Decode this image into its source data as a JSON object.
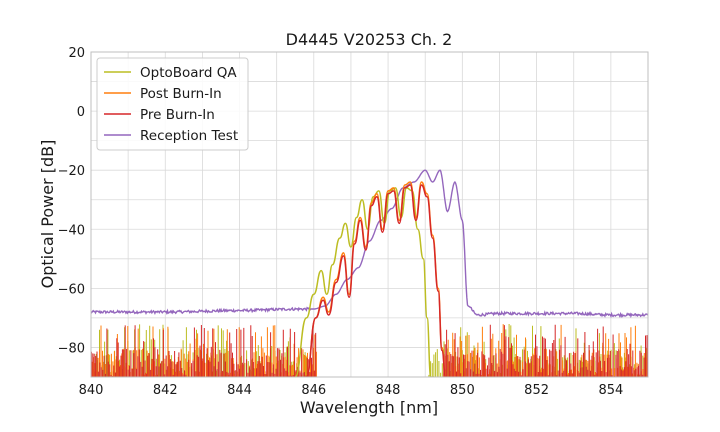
{
  "chart_data": {
    "type": "line",
    "title": "D4445 V20253 Ch. 2",
    "xlabel": "Wavelength [nm]",
    "ylabel": "Optical Power [dB]",
    "xlim": [
      840,
      855
    ],
    "ylim": [
      -90,
      20
    ],
    "xticks": [
      840,
      842,
      844,
      846,
      848,
      850,
      852,
      854
    ],
    "yticks": [
      -80,
      -60,
      -40,
      -20,
      0,
      20
    ],
    "ytick_labels": [
      "−80",
      "−60",
      "−40",
      "−20",
      "0",
      "20"
    ],
    "grid": true,
    "legend_position": "top-left",
    "colors": {
      "OptoBoard QA": "#bcbd22",
      "Post Burn-In": "#ff7f0e",
      "Pre Burn-In": "#d62728",
      "Reception Test": "#9467bd"
    },
    "series": [
      {
        "name": "OptoBoard QA",
        "noise_floor_range": [
          -90,
          -72
        ],
        "x": [
          845.5,
          845.8,
          846.0,
          846.2,
          846.35,
          846.5,
          846.7,
          846.85,
          847.0,
          847.15,
          847.3,
          847.45,
          847.6,
          847.75,
          847.9,
          848.05,
          848.2,
          848.35,
          848.5,
          848.65,
          848.8,
          848.95,
          849.05,
          849.15,
          849.25
        ],
        "values": [
          -90,
          -70,
          -62,
          -54,
          -62,
          -52,
          -43,
          -38,
          -46,
          -36,
          -30,
          -40,
          -29,
          -27,
          -38,
          -27,
          -26,
          -36,
          -26,
          -27,
          -40,
          -50,
          -70,
          -90,
          -90
        ]
      },
      {
        "name": "Post Burn-In",
        "noise_floor_range": [
          -90,
          -72
        ],
        "x": [
          845.8,
          846.05,
          846.25,
          846.4,
          846.6,
          846.8,
          846.95,
          847.1,
          847.25,
          847.4,
          847.55,
          847.7,
          847.85,
          848.0,
          848.15,
          848.3,
          848.45,
          848.6,
          848.75,
          848.9,
          849.05,
          849.2,
          849.35,
          849.45,
          849.55
        ],
        "values": [
          -90,
          -70,
          -63,
          -68,
          -57,
          -48,
          -62,
          -44,
          -36,
          -46,
          -31,
          -28,
          -40,
          -27,
          -26,
          -37,
          -25,
          -24,
          -36,
          -24,
          -28,
          -42,
          -60,
          -80,
          -90
        ]
      },
      {
        "name": "Pre Burn-In",
        "noise_floor_range": [
          -90,
          -72
        ],
        "x": [
          845.8,
          846.05,
          846.25,
          846.4,
          846.6,
          846.8,
          846.95,
          847.1,
          847.25,
          847.4,
          847.55,
          847.7,
          847.85,
          848.0,
          848.15,
          848.3,
          848.45,
          848.6,
          848.75,
          848.9,
          849.05,
          849.2,
          849.35,
          849.45,
          849.55
        ],
        "values": [
          -90,
          -70,
          -64,
          -69,
          -58,
          -49,
          -63,
          -45,
          -37,
          -47,
          -32,
          -29,
          -41,
          -28,
          -27,
          -38,
          -26,
          -25,
          -37,
          -25,
          -29,
          -43,
          -61,
          -81,
          -90
        ]
      },
      {
        "name": "Reception Test",
        "x": [
          840.0,
          842.0,
          844.0,
          845.5,
          846.0,
          846.3,
          846.6,
          846.9,
          847.2,
          847.5,
          847.8,
          848.1,
          848.4,
          848.7,
          849.0,
          849.2,
          849.4,
          849.6,
          849.8,
          850.0,
          850.15,
          850.4,
          851.0,
          852.0,
          853.0,
          854.0,
          855.0
        ],
        "values": [
          -68,
          -68,
          -67.5,
          -67,
          -67,
          -66,
          -62,
          -57,
          -53,
          -44,
          -37,
          -33,
          -26,
          -24,
          -20,
          -24,
          -20,
          -34,
          -24,
          -37,
          -66,
          -69,
          -68.5,
          -68.5,
          -68.5,
          -69,
          -69
        ]
      }
    ]
  }
}
